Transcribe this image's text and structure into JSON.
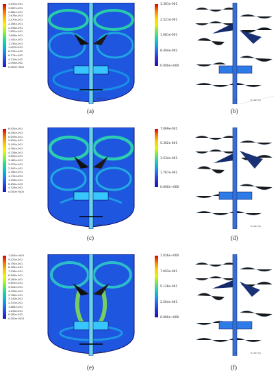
{
  "panels": [
    {
      "id": "a",
      "caption": "(a)",
      "legend_labels": [
        "3.293e-001",
        "3.087e-001",
        "2.881e-001",
        "2.676e-001",
        "2.470e-001",
        "2.264e-001",
        "2.058e-001",
        "1.852e-001",
        "1.646e-001",
        "1.441e-001",
        "1.235e-001",
        "1.029e-001",
        "8.232e-002",
        "6.174e-002",
        "4.116e-002",
        "2.058e-002",
        "0.000e+000"
      ],
      "scale": {
        "left": "0",
        "right": "0.100 (m)"
      }
    },
    {
      "id": "b",
      "caption": "(b)",
      "legend_labels": [
        "3.361e-001",
        "2.521e-001",
        "1.681e-001",
        "8.404e-002",
        "0.000e+000"
      ],
      "scale": {
        "left": "0",
        "right": "0.100 (m)"
      }
    },
    {
      "id": "c",
      "caption": "(c)",
      "legend_labels": [
        "6.925e-001",
        "6.492e-001",
        "6.059e-001",
        "5.626e-001",
        "5.193e-001",
        "4.761e-001",
        "4.328e-001",
        "3.895e-001",
        "3.462e-001",
        "3.029e-001",
        "2.597e-001",
        "2.164e-001",
        "1.731e-001",
        "1.298e-001",
        "8.656e-002",
        "4.328e-002",
        "0.000e+000"
      ],
      "scale": {
        "left": "0",
        "right": "0.100 (m)"
      }
    },
    {
      "id": "d",
      "caption": "(d)",
      "legend_labels": [
        "7.069e-001",
        "5.302e-001",
        "3.534e-001",
        "1.767e-001",
        "0.000e+000"
      ],
      "scale": {
        "left": "0",
        "right": "0.100 (m)"
      }
    },
    {
      "id": "e",
      "caption": "(e)",
      "legend_labels": [
        "1.005e+000",
        "9.423e-001",
        "8.792e-001",
        "8.164e-001",
        "7.536e-001",
        "6.908e-001",
        "6.280e-001",
        "5.652e-001",
        "5.024e-001",
        "4.396e-001",
        "3.768e-001",
        "3.140e-001",
        "2.513e-001",
        "1.884e-001",
        "1.256e-001",
        "6.280e-002",
        "0.000e+000"
      ],
      "scale": {
        "left": "0",
        "right": "0.100 (m)"
      }
    },
    {
      "id": "f",
      "caption": "(f)",
      "legend_labels": [
        "1.026e+000",
        "7.693e-001",
        "5.128e-001",
        "2.564e-001",
        "0.000e+000"
      ],
      "scale": {
        "left": "0",
        "right": "0.100 (m)"
      }
    }
  ]
}
